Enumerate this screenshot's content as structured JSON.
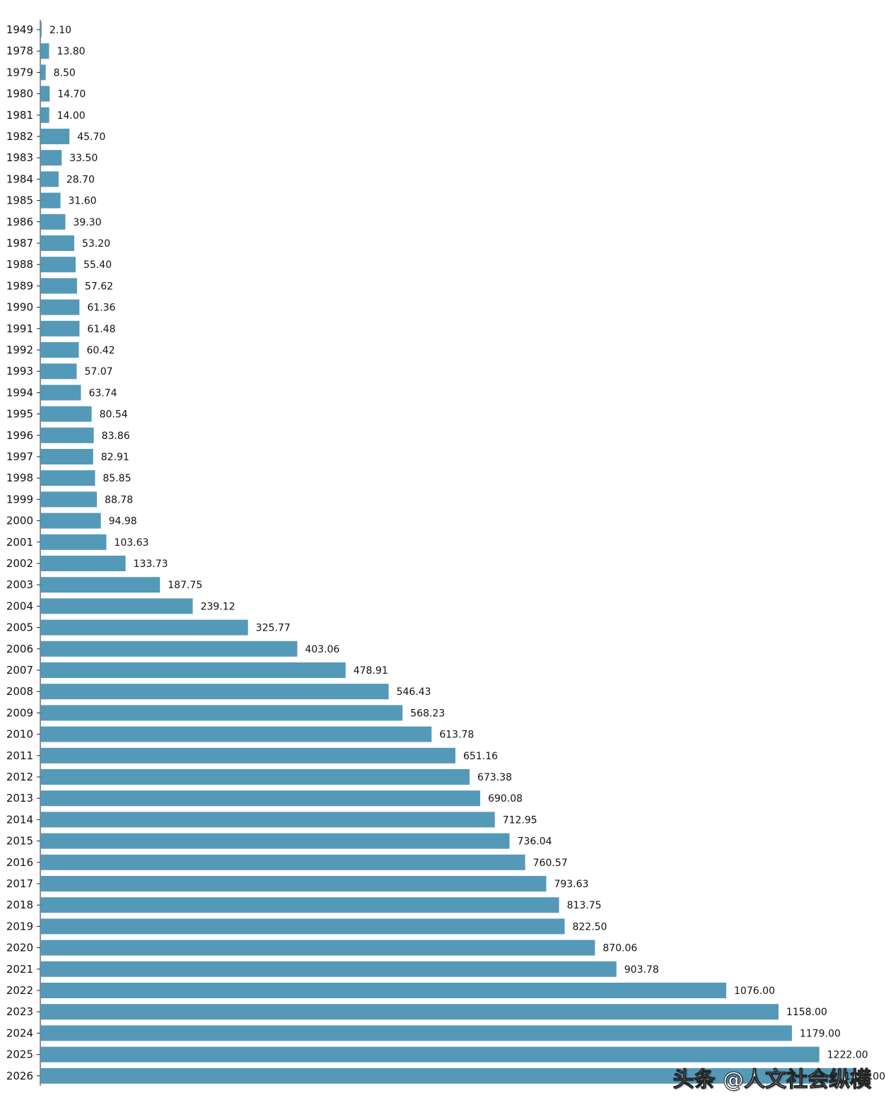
{
  "chart_data": {
    "type": "bar",
    "orientation": "horizontal",
    "categories": [
      "1949",
      "1978",
      "1979",
      "1980",
      "1981",
      "1982",
      "1983",
      "1984",
      "1985",
      "1986",
      "1987",
      "1988",
      "1989",
      "1990",
      "1991",
      "1992",
      "1993",
      "1994",
      "1995",
      "1996",
      "1997",
      "1998",
      "1999",
      "2000",
      "2001",
      "2002",
      "2003",
      "2004",
      "2005",
      "2006",
      "2007",
      "2008",
      "2009",
      "2010",
      "2011",
      "2012",
      "2013",
      "2014",
      "2015",
      "2016",
      "2017",
      "2018",
      "2019",
      "2020",
      "2021",
      "2022",
      "2023",
      "2024",
      "2025",
      "2026"
    ],
    "values": [
      2.1,
      13.8,
      8.5,
      14.7,
      14.0,
      45.7,
      33.5,
      28.7,
      31.6,
      39.3,
      53.2,
      55.4,
      57.62,
      61.36,
      61.48,
      60.42,
      57.07,
      63.74,
      80.54,
      83.86,
      82.91,
      85.85,
      88.78,
      94.98,
      103.63,
      133.73,
      187.75,
      239.12,
      325.77,
      403.06,
      478.91,
      546.43,
      568.23,
      613.78,
      651.16,
      673.38,
      690.08,
      712.95,
      736.04,
      760.57,
      793.63,
      813.75,
      822.5,
      870.06,
      903.78,
      1076.0,
      1158.0,
      1179.0,
      1222.0,
      1277.0
    ],
    "value_labels": [
      "2.10",
      "13.80",
      "8.50",
      "14.70",
      "14.00",
      "45.70",
      "33.50",
      "28.70",
      "31.60",
      "39.30",
      "53.20",
      "55.40",
      "57.62",
      "61.36",
      "61.48",
      "60.42",
      "57.07",
      "63.74",
      "80.54",
      "83.86",
      "82.91",
      "85.85",
      "88.78",
      "94.98",
      "103.63",
      "133.73",
      "187.75",
      "239.12",
      "325.77",
      "403.06",
      "478.91",
      "546.43",
      "568.23",
      "613.78",
      "651.16",
      "673.38",
      "690.08",
      "712.95",
      "736.04",
      "760.57",
      "793.63",
      "813.75",
      "822.50",
      "870.06",
      "903.78",
      "1076.00",
      "1158.00",
      "1179.00",
      "1222.00",
      "1277.00"
    ],
    "xlim": [
      0,
      1300
    ],
    "title": "",
    "xlabel": "",
    "ylabel": "",
    "grid": false,
    "bar_color": "#5599b8"
  },
  "watermark": "头条 @人文社会纵横"
}
